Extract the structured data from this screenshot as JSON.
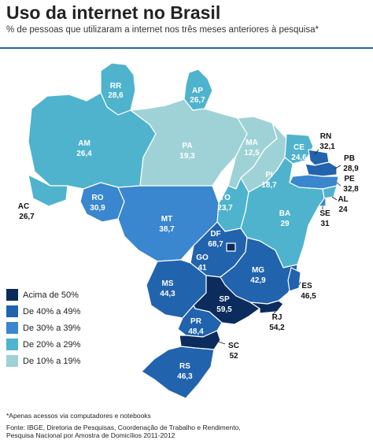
{
  "title": "Uso da internet no Brasil",
  "subtitle": "% de pessoas que utilizaram a internet nos três meses anteriores à pesquisa*",
  "colors": {
    "c50": "#0b2c5c",
    "c40": "#2263ae",
    "c30": "#3a86cf",
    "c20": "#4fb3cd",
    "c10": "#9fd2d6",
    "border": "#ffffff",
    "rule": "#2b63a8"
  },
  "legend": [
    {
      "label": "Acima de 50%",
      "color": "#0b2c5c"
    },
    {
      "label": "De 40% a 49%",
      "color": "#2263ae"
    },
    {
      "label": "De 30% a 39%",
      "color": "#3a86cf"
    },
    {
      "label": "De 20% a 29%",
      "color": "#4fb3cd"
    },
    {
      "label": "De 10% a 19%",
      "color": "#9fd2d6"
    }
  ],
  "states": [
    {
      "code": "RR",
      "value": "28,6"
    },
    {
      "code": "AP",
      "value": "26,7"
    },
    {
      "code": "AM",
      "value": "26,4"
    },
    {
      "code": "PA",
      "value": "19,3"
    },
    {
      "code": "MA",
      "value": "12,5"
    },
    {
      "code": "CE",
      "value": "24,6"
    },
    {
      "code": "RN",
      "value": "32,1"
    },
    {
      "code": "PB",
      "value": "28,9"
    },
    {
      "code": "PE",
      "value": "32,8"
    },
    {
      "code": "AL",
      "value": "24"
    },
    {
      "code": "SE",
      "value": "31"
    },
    {
      "code": "PI",
      "value": "18,7"
    },
    {
      "code": "AC",
      "value": "26,7"
    },
    {
      "code": "RO",
      "value": "30,9"
    },
    {
      "code": "TO",
      "value": "23,7"
    },
    {
      "code": "BA",
      "value": "29"
    },
    {
      "code": "MT",
      "value": "38,7"
    },
    {
      "code": "DF",
      "value": "68,7"
    },
    {
      "code": "GO",
      "value": "41"
    },
    {
      "code": "MG",
      "value": "42,9"
    },
    {
      "code": "MS",
      "value": "44,3"
    },
    {
      "code": "ES",
      "value": "46,5"
    },
    {
      "code": "SP",
      "value": "59,5"
    },
    {
      "code": "RJ",
      "value": "54,2"
    },
    {
      "code": "PR",
      "value": "48,4"
    },
    {
      "code": "SC",
      "value": "52"
    },
    {
      "code": "RS",
      "value": "46,3"
    }
  ],
  "footnote": "*Apenas acessos via computadores e notebooks",
  "source": "Fonte: IBGE, Diretoria de Pesquisas, Coordenação de Trabalho e Rendimento, Pesquisa Nacional por Amostra de Domicílios 2011-2012"
}
